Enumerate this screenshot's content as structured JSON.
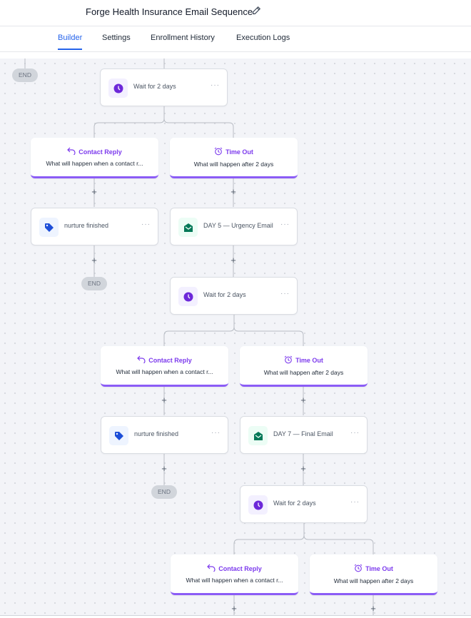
{
  "header": {
    "title": "Forge Health Insurance Email Sequence",
    "edit_icon": "pencil-icon"
  },
  "tabs": [
    {
      "label": "Builder",
      "active": true
    },
    {
      "label": "Settings"
    },
    {
      "label": "Enrollment History"
    },
    {
      "label": "Execution Logs"
    }
  ],
  "colors": {
    "accent": "#2563eb",
    "branch": "#7c3aed",
    "wait_icon": "#6d28d9",
    "tag_icon": "#1d4ed8",
    "email_icon": "#047857"
  },
  "canvas": {
    "top_end_label": "END",
    "levels": [
      {
        "wait": {
          "label": "Wait for 2 days",
          "icon": "clock-icon"
        },
        "reply": {
          "title": "Contact Reply",
          "subtitle": "What will happen when a contact r...",
          "icon": "reply-arrow-icon"
        },
        "timeout": {
          "title": "Time Out",
          "subtitle": "What will happen after 2 days",
          "icon": "alarm-clock-icon"
        },
        "reply_action": {
          "label": "nurture finished",
          "icon": "tag-icon"
        },
        "end_label": "END",
        "timeout_action": {
          "label": "DAY 5 — Urgency Email",
          "icon": "email-icon"
        }
      },
      {
        "wait": {
          "label": "Wait for 2 days",
          "icon": "clock-icon"
        },
        "reply": {
          "title": "Contact Reply",
          "subtitle": "What will happen when a contact r...",
          "icon": "reply-arrow-icon"
        },
        "timeout": {
          "title": "Time Out",
          "subtitle": "What will happen after 2 days",
          "icon": "alarm-clock-icon"
        },
        "reply_action": {
          "label": "nurture finished",
          "icon": "tag-icon"
        },
        "end_label": "END",
        "timeout_action": {
          "label": "DAY 7 — Final Email",
          "icon": "email-icon"
        }
      },
      {
        "wait": {
          "label": "Wait for 2 days",
          "icon": "clock-icon"
        },
        "reply": {
          "title": "Contact Reply",
          "subtitle": "What will happen when a contact r...",
          "icon": "reply-arrow-icon"
        },
        "timeout": {
          "title": "Time Out",
          "subtitle": "What will happen after 2 days",
          "icon": "alarm-clock-icon"
        }
      }
    ]
  }
}
